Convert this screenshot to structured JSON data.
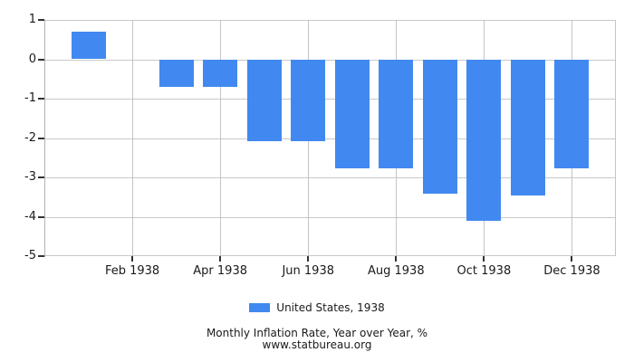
{
  "chart_data": {
    "type": "bar",
    "title": "Monthly Inflation Rate, Year over Year, %",
    "source": "www.statbureau.org",
    "legend_label": "United States, 1938",
    "legend_position": "bottom",
    "bar_color": "#4189f0",
    "categories": [
      "Jan 1938",
      "Feb 1938",
      "Mar 1938",
      "Apr 1938",
      "May 1938",
      "Jun 1938",
      "Jul 1938",
      "Aug 1938",
      "Sep 1938",
      "Oct 1938",
      "Nov 1938",
      "Dec 1938"
    ],
    "values": [
      0.71,
      0,
      -0.7,
      -0.7,
      -2.08,
      -2.08,
      -2.76,
      -2.76,
      -3.42,
      -4.11,
      -3.45,
      -2.78
    ],
    "x_tick_labels": [
      "Feb 1938",
      "Apr 1938",
      "Jun 1938",
      "Aug 1938",
      "Oct 1938",
      "Dec 1938"
    ],
    "y_ticks": [
      1,
      0,
      -1,
      -2,
      -3,
      -4,
      -5
    ],
    "ylim": [
      -5,
      1
    ],
    "grid": true
  }
}
